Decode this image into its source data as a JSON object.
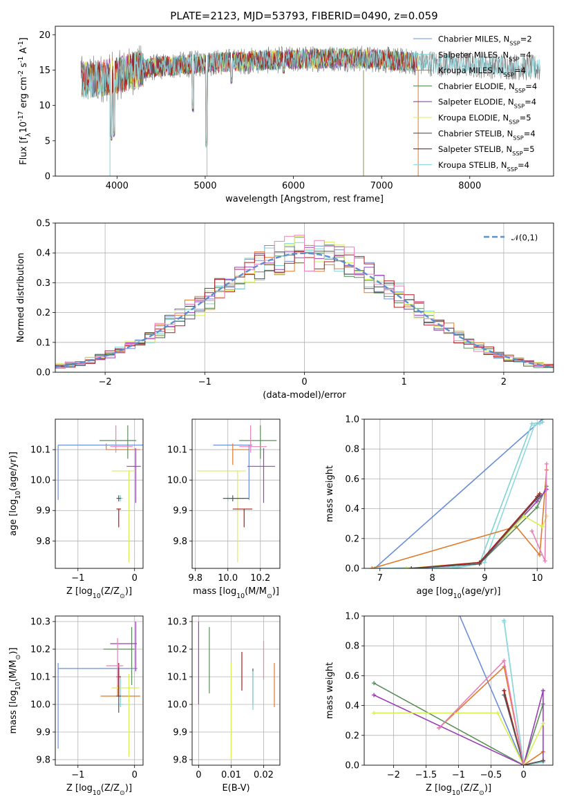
{
  "title": "PLATE=2123, MJD=53793, FIBERID=0490, z=0.059",
  "colors": {
    "Chabrier MILES": "#6a8fd8",
    "Salpeter MILES": "#7fd3d3",
    "Kroupa MILES": "#e07a2a",
    "Chabrier ELODIE": "#5a8f5a",
    "Salpeter ELODIE": "#9a3fb8",
    "Kroupa ELODIE": "#d8ee55",
    "Chabrier STELIB": "#555555",
    "Salpeter STELIB": "#b01818",
    "Kroupa STELIB": "#8fd8e0",
    "residual_pink": "#e880b8",
    "data_spectrum": "#808080",
    "gaussian": "#5a8fd0"
  },
  "chart_data": [
    {
      "id": "spectrum",
      "type": "line",
      "xlabel": "wavelength [Angstrom, rest frame]",
      "ylabel": "Flux [f$_\\lambda$10$^{-17}$ erg cm$^{-2}$ s$^{-1}$ A$^{-1}$]",
      "xlim": [
        3300,
        8950
      ],
      "ylim": [
        0,
        21.2
      ],
      "xticks": [
        4000,
        5000,
        6000,
        7000,
        8000
      ],
      "yticks": [
        0,
        5,
        10,
        15,
        20
      ],
      "grid": false,
      "legend_position": "upper right",
      "series": [
        {
          "name": "Chabrier MILES, N$_{SSP}$=2",
          "color": "#6a8fd8"
        },
        {
          "name": "Salpeter MILES, N$_{SSP}$=4",
          "color": "#7fd3d3"
        },
        {
          "name": "Kroupa MILES, N$_{SSP}$=4",
          "color": "#e07a2a"
        },
        {
          "name": "Chabrier ELODIE, N$_{SSP}$=4",
          "color": "#5a8f5a"
        },
        {
          "name": "Salpeter ELODIE, N$_{SSP}$=4",
          "color": "#9a3fb8"
        },
        {
          "name": "Kroupa ELODIE, N$_{SSP}$=5",
          "color": "#d8ee55"
        },
        {
          "name": "Chabrier STELIB, N$_{SSP}$=4",
          "color": "#555555"
        },
        {
          "name": "Salpeter STELIB, N$_{SSP}$=5",
          "color": "#b01818"
        },
        {
          "name": "Kroupa STELIB, N$_{SSP}$=4",
          "color": "#8fd8e0"
        }
      ],
      "continuum_points": [
        [
          3600,
          13.5
        ],
        [
          3800,
          13.8
        ],
        [
          4000,
          14.2
        ],
        [
          4200,
          15.0
        ],
        [
          4500,
          15.5
        ],
        [
          5000,
          16.0
        ],
        [
          5500,
          16.3
        ],
        [
          6000,
          16.5
        ],
        [
          6500,
          16.7
        ],
        [
          7000,
          16.5
        ],
        [
          7500,
          16.0
        ],
        [
          8000,
          15.8
        ],
        [
          8500,
          15.5
        ],
        [
          8800,
          15.2
        ]
      ],
      "dips": [
        [
          3934,
          5.0
        ],
        [
          3968,
          5.5
        ],
        [
          4861,
          9.0
        ],
        [
          5015,
          4.0
        ],
        [
          5300,
          13.0
        ],
        [
          5890,
          14.5
        ]
      ]
    },
    {
      "id": "residuals",
      "type": "histogram",
      "xlabel": "(data-model)/error",
      "ylabel": "Normed distribution",
      "xlim": [
        -2.5,
        2.5
      ],
      "ylim": [
        0,
        0.5
      ],
      "xticks": [
        -2,
        -1,
        0,
        1,
        2
      ],
      "yticks": [
        0.0,
        0.1,
        0.2,
        0.3,
        0.4,
        0.5
      ],
      "grid": true,
      "legend": [
        {
          "name": "$\\mathcal{N}(0,1)$",
          "style": "dashed"
        }
      ],
      "legend_position": "upper right",
      "bin_width": 0.1,
      "gaussian": {
        "mean": 0,
        "sigma": 1
      }
    },
    {
      "id": "age-vs-Z",
      "type": "errorbar",
      "xlabel": "Z [log$_{10}$(Z/Z$_\\odot$)]",
      "ylabel": "age  [log$_{10}$(age/yr)]",
      "xlim": [
        -1.4,
        0.15
      ],
      "ylim": [
        9.71,
        10.2
      ],
      "xticks": [
        -1,
        0
      ],
      "yticks": [
        9.8,
        9.9,
        10.0,
        10.1
      ],
      "grid": true,
      "points": [
        {
          "color": "#6a8fd8",
          "x": -1.35,
          "y": 10.115,
          "xerr": [
            0.0,
            1.55
          ],
          "yerr": [
            0.18,
            0.0
          ]
        },
        {
          "color": "#7fd3d3",
          "x": -0.25,
          "y": 9.94,
          "xerr": [
            0.04,
            0.04
          ],
          "yerr": [
            0.01,
            0.01
          ]
        },
        {
          "color": "#e07a2a",
          "x": -0.5,
          "y": 10.1,
          "xerr": [
            0.0,
            0.6
          ],
          "yerr": [
            0.0,
            0.02
          ]
        },
        {
          "color": "#5a8f5a",
          "x": -0.12,
          "y": 10.13,
          "xerr": [
            0.5,
            0.15
          ],
          "yerr": [
            0.06,
            0.05
          ]
        },
        {
          "color": "#9a3fb8",
          "x": 0.02,
          "y": 10.045,
          "xerr": [
            0.16,
            0.09
          ],
          "yerr": [
            0.12,
            0.06
          ]
        },
        {
          "color": "#d8ee55",
          "x": -0.1,
          "y": 10.03,
          "xerr": [
            0.3,
            0.1
          ],
          "yerr": [
            0.3,
            0.0
          ]
        },
        {
          "color": "#555555",
          "x": -0.28,
          "y": 9.94,
          "xerr": [
            0.04,
            0.04
          ],
          "yerr": [
            0.01,
            0.01
          ]
        },
        {
          "color": "#b01818",
          "x": -0.28,
          "y": 9.905,
          "xerr": [
            0.04,
            0.04
          ],
          "yerr": [
            0.06,
            0.0
          ]
        },
        {
          "color": "#e880b8",
          "x": -0.33,
          "y": 10.11,
          "xerr": [
            0.1,
            0.3
          ],
          "yerr": [
            0.02,
            0.07
          ]
        }
      ]
    },
    {
      "id": "age-vs-mass",
      "type": "errorbar",
      "xlabel": "mass [log$_{10}$(M/M$_\\odot$)]",
      "ylabel": "",
      "xlim": [
        9.78,
        10.32
      ],
      "ylim": [
        9.71,
        10.2
      ],
      "xticks": [
        9.8,
        10.0,
        10.2
      ],
      "yticks": [
        9.8,
        9.9,
        10.0,
        10.1
      ],
      "grid": true,
      "points": [
        {
          "color": "#6a8fd8",
          "x": 10.13,
          "y": 10.115,
          "xerr": [
            0.22,
            0.02
          ],
          "yerr": [
            0.18,
            0.0
          ]
        },
        {
          "color": "#7fd3d3",
          "x": 10.0,
          "y": 9.94,
          "xerr": [
            0.01,
            0.1
          ],
          "yerr": [
            0.01,
            0.01
          ]
        },
        {
          "color": "#e07a2a",
          "x": 10.03,
          "y": 10.1,
          "xerr": [
            0.0,
            0.1
          ],
          "yerr": [
            0.05,
            0.02
          ]
        },
        {
          "color": "#5a8f5a",
          "x": 10.2,
          "y": 10.13,
          "xerr": [
            0.13,
            0.1
          ],
          "yerr": [
            0.06,
            0.05
          ]
        },
        {
          "color": "#9a3fb8",
          "x": 10.22,
          "y": 10.045,
          "xerr": [
            0.1,
            0.07
          ],
          "yerr": [
            0.12,
            0.06
          ]
        },
        {
          "color": "#d8ee55",
          "x": 10.06,
          "y": 10.03,
          "xerr": [
            0.25,
            0.05
          ],
          "yerr": [
            0.3,
            0.0
          ]
        },
        {
          "color": "#555555",
          "x": 10.03,
          "y": 9.94,
          "xerr": [
            0.06,
            0.1
          ],
          "yerr": [
            0.01,
            0.01
          ]
        },
        {
          "color": "#b01818",
          "x": 10.1,
          "y": 9.905,
          "xerr": [
            0.07,
            0.05
          ],
          "yerr": [
            0.06,
            0.0
          ]
        },
        {
          "color": "#e880b8",
          "x": 10.14,
          "y": 10.11,
          "xerr": [
            0.07,
            0.1
          ],
          "yerr": [
            0.02,
            0.07
          ]
        }
      ]
    },
    {
      "id": "weight-vs-age",
      "type": "line",
      "xlabel": "age  [log$_{10}$(age/yr)]",
      "ylabel": "mass weight",
      "xlim": [
        6.7,
        10.3
      ],
      "ylim": [
        0,
        1.0
      ],
      "xticks": [
        7,
        8,
        9,
        10
      ],
      "yticks": [
        0.0,
        0.2,
        0.4,
        0.6,
        0.8,
        1.0
      ],
      "grid": true,
      "series": [
        {
          "color": "#6a8fd8",
          "x": [
            6.9,
            10.1
          ],
          "y": [
            0.0,
            1.0
          ]
        },
        {
          "color": "#7fd3d3",
          "x": [
            6.9,
            8.4,
            8.9,
            9.9,
            10.1
          ],
          "y": [
            0.0,
            0.0,
            0.03,
            0.97,
            0.98
          ]
        },
        {
          "color": "#8fd8e0",
          "x": [
            6.9,
            8.5,
            9.0,
            9.95,
            10.05
          ],
          "y": [
            0.0,
            0.01,
            0.04,
            0.96,
            0.97
          ]
        },
        {
          "color": "#e07a2a",
          "x": [
            6.85,
            9.6,
            10.05,
            10.18
          ],
          "y": [
            0.0,
            0.28,
            0.09,
            0.66
          ]
        },
        {
          "color": "#5a8f5a",
          "x": [
            7.6,
            8.9,
            10.0,
            10.18
          ],
          "y": [
            0.0,
            0.03,
            0.41,
            0.55
          ]
        },
        {
          "color": "#9a3fb8",
          "x": [
            7.6,
            8.9,
            10.0,
            10.18
          ],
          "y": [
            0.0,
            0.03,
            0.45,
            0.53
          ]
        },
        {
          "color": "#d8ee55",
          "x": [
            7.5,
            8.9,
            9.75,
            10.1,
            10.18
          ],
          "y": [
            0.0,
            0.04,
            0.35,
            0.28,
            0.35
          ]
        },
        {
          "color": "#b01818",
          "x": [
            7.6,
            8.9,
            10.0,
            10.05
          ],
          "y": [
            0.0,
            0.04,
            0.48,
            0.5
          ]
        },
        {
          "color": "#555555",
          "x": [
            7.6,
            8.9,
            10.0,
            10.05
          ],
          "y": [
            0.0,
            0.03,
            0.47,
            0.49
          ]
        },
        {
          "color": "#e880b8",
          "x": [
            9.9,
            10.15,
            10.18
          ],
          "y": [
            0.25,
            0.05,
            0.7
          ]
        }
      ]
    },
    {
      "id": "mass-vs-Z",
      "type": "errorbar",
      "xlabel": "Z [log$_{10}$(Z/Z$_\\odot$)]",
      "ylabel": "mass [log$_{10}$(M/M$_\\odot$)]",
      "xlim": [
        -1.4,
        0.15
      ],
      "ylim": [
        9.78,
        10.32
      ],
      "xticks": [
        -1,
        0
      ],
      "yticks": [
        9.8,
        9.9,
        10.0,
        10.1,
        10.2,
        10.3
      ],
      "grid": true,
      "points": [
        {
          "color": "#6a8fd8",
          "x": -1.35,
          "y": 10.13,
          "xerr": [
            0.0,
            1.4
          ],
          "yerr": [
            0.29,
            0.02
          ]
        },
        {
          "color": "#7fd3d3",
          "x": -0.25,
          "y": 10.0,
          "xerr": [
            0.04,
            0.04
          ],
          "yerr": [
            0.01,
            0.1
          ]
        },
        {
          "color": "#e07a2a",
          "x": -0.3,
          "y": 10.03,
          "xerr": [
            0.3,
            0.4
          ],
          "yerr": [
            0.0,
            0.1
          ]
        },
        {
          "color": "#5a8f5a",
          "x": -0.05,
          "y": 10.2,
          "xerr": [
            0.5,
            0.05
          ],
          "yerr": [
            0.13,
            0.08
          ]
        },
        {
          "color": "#9a3fb8",
          "x": 0.02,
          "y": 10.22,
          "xerr": [
            0.45,
            0.02
          ],
          "yerr": [
            0.1,
            0.08
          ]
        },
        {
          "color": "#d8ee55",
          "x": -0.1,
          "y": 10.06,
          "xerr": [
            0.3,
            0.18
          ],
          "yerr": [
            0.25,
            0.05
          ]
        },
        {
          "color": "#555555",
          "x": -0.28,
          "y": 10.03,
          "xerr": [
            0.04,
            0.04
          ],
          "yerr": [
            0.06,
            0.1
          ]
        },
        {
          "color": "#b01818",
          "x": -0.28,
          "y": 10.1,
          "xerr": [
            0.04,
            0.04
          ],
          "yerr": [
            0.07,
            0.05
          ]
        },
        {
          "color": "#e880b8",
          "x": -0.3,
          "y": 10.14,
          "xerr": [
            0.2,
            0.1
          ],
          "yerr": [
            0.07,
            0.1
          ]
        }
      ]
    },
    {
      "id": "mass-vs-EBV",
      "type": "errorbar",
      "xlabel": "E(B-V)",
      "ylabel": "",
      "xlim": [
        -0.002,
        0.025
      ],
      "ylim": [
        9.78,
        10.32
      ],
      "xticks": [
        0.0,
        0.01,
        0.02
      ],
      "yticks": [
        9.8,
        9.9,
        10.0,
        10.1,
        10.2,
        10.3
      ],
      "grid": true,
      "points": [
        {
          "color": "#9a3fb8",
          "x": 0.0,
          "y": 10.22,
          "xerr": [
            0.0,
            0.0
          ],
          "yerr": [
            0.22,
            0.08
          ]
        },
        {
          "color": "#5a8f5a",
          "x": 0.0033,
          "y": 10.2,
          "xerr": [
            0.0,
            0.0
          ],
          "yerr": [
            0.16,
            0.08
          ]
        },
        {
          "color": "#d8ee55",
          "x": 0.01,
          "y": 10.06,
          "xerr": [
            0.0,
            0.0
          ],
          "yerr": [
            0.26,
            0.09
          ]
        },
        {
          "color": "#b01818",
          "x": 0.0133,
          "y": 10.1,
          "xerr": [
            0.0,
            0.0
          ],
          "yerr": [
            0.05,
            0.09
          ]
        },
        {
          "color": "#555555",
          "x": 0.0167,
          "y": 10.03,
          "xerr": [
            0.0,
            0.0
          ],
          "yerr": [
            0.03,
            0.1
          ]
        },
        {
          "color": "#7fd3d3",
          "x": 0.0167,
          "y": 10.0,
          "xerr": [
            0.0,
            0.0
          ],
          "yerr": [
            0.02,
            0.12
          ]
        },
        {
          "color": "#e880b8",
          "x": 0.02,
          "y": 10.14,
          "xerr": [
            0.0,
            0.0
          ],
          "yerr": [
            0.05,
            0.09
          ]
        },
        {
          "color": "#e07a2a",
          "x": 0.0233,
          "y": 10.03,
          "xerr": [
            0.0,
            0.0
          ],
          "yerr": [
            0.04,
            0.12
          ]
        }
      ]
    },
    {
      "id": "weight-vs-Z",
      "type": "line",
      "xlabel": "Z [log$_{10}$(Z/Z$_\\odot$)]",
      "ylabel": "mass weight",
      "xlim": [
        -2.45,
        0.45
      ],
      "ylim": [
        0,
        1.0
      ],
      "xticks": [
        -2.0,
        -1.5,
        -1.0,
        -0.5,
        0.0
      ],
      "yticks": [
        0.0,
        0.2,
        0.4,
        0.6,
        0.8,
        1.0
      ],
      "grid": true,
      "series": [
        {
          "color": "#6a8fd8",
          "x": [
            -1.0,
            0.0,
            0.3
          ],
          "y": [
            1.02,
            0.0,
            0.03
          ]
        },
        {
          "color": "#7fd3d3",
          "x": [
            -0.3,
            0.0,
            0.3
          ],
          "y": [
            0.97,
            0.0,
            0.03
          ]
        },
        {
          "color": "#8fd8e0",
          "x": [
            -0.3,
            0.0,
            0.3
          ],
          "y": [
            0.96,
            0.0,
            0.02
          ]
        },
        {
          "color": "#e07a2a",
          "x": [
            -1.3,
            -0.3,
            0.0,
            0.3
          ],
          "y": [
            0.25,
            0.66,
            0.0,
            0.09
          ]
        },
        {
          "color": "#5a8f5a",
          "x": [
            -2.3,
            0.0,
            0.3
          ],
          "y": [
            0.55,
            0.0,
            0.41
          ]
        },
        {
          "color": "#9a3fb8",
          "x": [
            -2.3,
            0.0,
            0.3,
            0.3
          ],
          "y": [
            0.47,
            0.0,
            0.5,
            0.03
          ]
        },
        {
          "color": "#d8ee55",
          "x": [
            -2.3,
            -0.4,
            0.0,
            0.3
          ],
          "y": [
            0.35,
            0.35,
            0.0,
            0.28
          ]
        },
        {
          "color": "#b01818",
          "x": [
            -0.3,
            0.0,
            0.3
          ],
          "y": [
            0.5,
            0.0,
            0.03
          ]
        },
        {
          "color": "#555555",
          "x": [
            -0.3,
            0.0,
            0.3
          ],
          "y": [
            0.47,
            0.0,
            0.03
          ]
        },
        {
          "color": "#e880b8",
          "x": [
            -1.3,
            -0.3,
            0.0
          ],
          "y": [
            0.25,
            0.7,
            0.0
          ]
        }
      ]
    }
  ]
}
